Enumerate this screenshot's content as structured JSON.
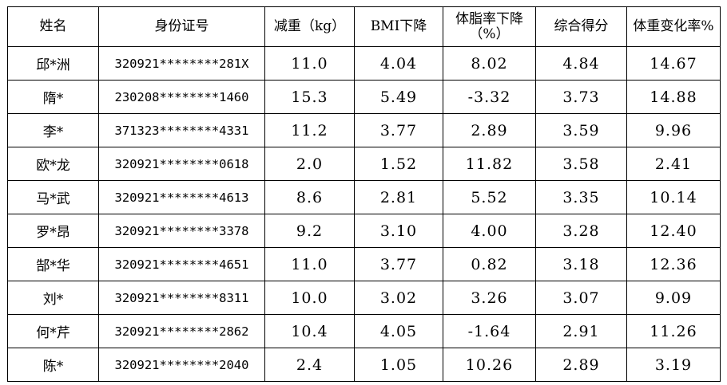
{
  "table": {
    "headers": [
      "姓名",
      "身份证号",
      "减重（kg）",
      "BMI下降",
      "体脂率下降（%）",
      "综合得分",
      "体重变化率%"
    ],
    "rows": [
      [
        "邱*洲",
        "320921********281X",
        "11.0",
        "4.04",
        "8.02",
        "4.84",
        "14.67"
      ],
      [
        "隋*",
        "230208********1460",
        "15.3",
        "5.49",
        "-3.32",
        "3.73",
        "14.88"
      ],
      [
        "李*",
        "371323********4331",
        "11.2",
        "3.77",
        "2.89",
        "3.59",
        "9.96"
      ],
      [
        "欧*龙",
        "320921********0618",
        "2.0",
        "1.52",
        "11.82",
        "3.58",
        "2.41"
      ],
      [
        "马*武",
        "320921********4613",
        "8.6",
        "2.81",
        "5.52",
        "3.35",
        "10.14"
      ],
      [
        "罗*昂",
        "320921********3378",
        "9.2",
        "3.10",
        "4.00",
        "3.28",
        "12.40"
      ],
      [
        "郜*华",
        "320921********4651",
        "11.0",
        "3.77",
        "0.82",
        "3.18",
        "12.36"
      ],
      [
        "刘*",
        "320921********8311",
        "10.0",
        "3.02",
        "3.26",
        "3.07",
        "9.09"
      ],
      [
        "何*芹",
        "320921********2862",
        "10.4",
        "4.05",
        "-1.64",
        "2.91",
        "11.26"
      ],
      [
        "陈*",
        "320921********2040",
        "2.4",
        "1.05",
        "10.26",
        "2.89",
        "3.19"
      ]
    ]
  }
}
